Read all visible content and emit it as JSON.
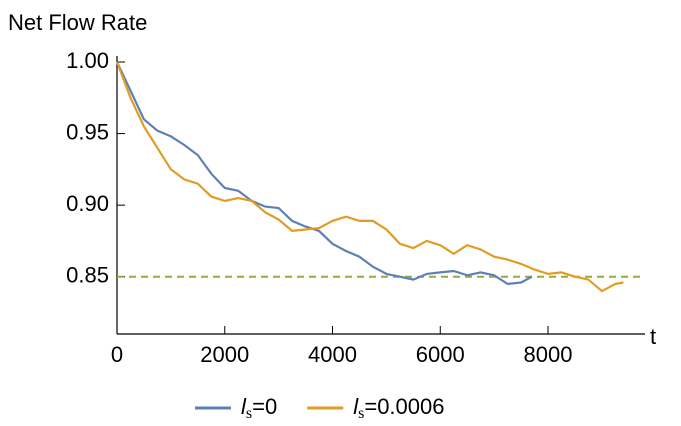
{
  "chart_data": {
    "type": "line",
    "y_label": "Net Flow Rate",
    "x_label": "t",
    "xlim": [
      0,
      9800
    ],
    "xticks": [
      0,
      2000,
      4000,
      6000,
      8000
    ],
    "ylim": [
      0.81,
      1.0
    ],
    "yticks": [
      {
        "value": 0.85,
        "label": "0.85"
      },
      {
        "value": 0.9,
        "label": "0.90"
      },
      {
        "value": 0.95,
        "label": "0.95"
      },
      {
        "value": 1.0,
        "label": "1.00"
      }
    ],
    "reference_line": {
      "value": 0.85,
      "color": "#8fb032",
      "style": "dashed"
    },
    "legend": "bottom",
    "series": [
      {
        "name": "ls=0",
        "color": "#5e81b5",
        "x": [
          0,
          250,
          500,
          750,
          1000,
          1250,
          1500,
          1750,
          2000,
          2250,
          2500,
          2750,
          3000,
          3250,
          3500,
          3750,
          4000,
          4250,
          4500,
          4750,
          5000,
          5250,
          5500,
          5750,
          6000,
          6250,
          6500,
          6750,
          7000,
          7250,
          7500,
          7700
        ],
        "values": [
          1.0,
          0.98,
          0.96,
          0.952,
          0.948,
          0.942,
          0.935,
          0.922,
          0.912,
          0.91,
          0.903,
          0.899,
          0.898,
          0.889,
          0.885,
          0.882,
          0.873,
          0.868,
          0.864,
          0.857,
          0.852,
          0.85,
          0.848,
          0.852,
          0.853,
          0.854,
          0.851,
          0.853,
          0.851,
          0.845,
          0.846,
          0.85
        ]
      },
      {
        "name": "ls=0.0006",
        "color": "#e19c24",
        "x": [
          0,
          250,
          500,
          750,
          1000,
          1250,
          1500,
          1750,
          2000,
          2250,
          2500,
          2750,
          3000,
          3250,
          3500,
          3750,
          4000,
          4250,
          4500,
          4750,
          5000,
          5250,
          5500,
          5750,
          6000,
          6250,
          6500,
          6750,
          7000,
          7250,
          7500,
          7750,
          8000,
          8250,
          8500,
          8750,
          9000,
          9250,
          9400
        ],
        "values": [
          1.0,
          0.975,
          0.955,
          0.94,
          0.925,
          0.918,
          0.915,
          0.906,
          0.903,
          0.905,
          0.903,
          0.895,
          0.89,
          0.882,
          0.883,
          0.884,
          0.889,
          0.892,
          0.889,
          0.889,
          0.883,
          0.873,
          0.87,
          0.875,
          0.872,
          0.866,
          0.872,
          0.869,
          0.864,
          0.862,
          0.859,
          0.855,
          0.852,
          0.853,
          0.85,
          0.848,
          0.84,
          0.845,
          0.846
        ]
      }
    ]
  }
}
